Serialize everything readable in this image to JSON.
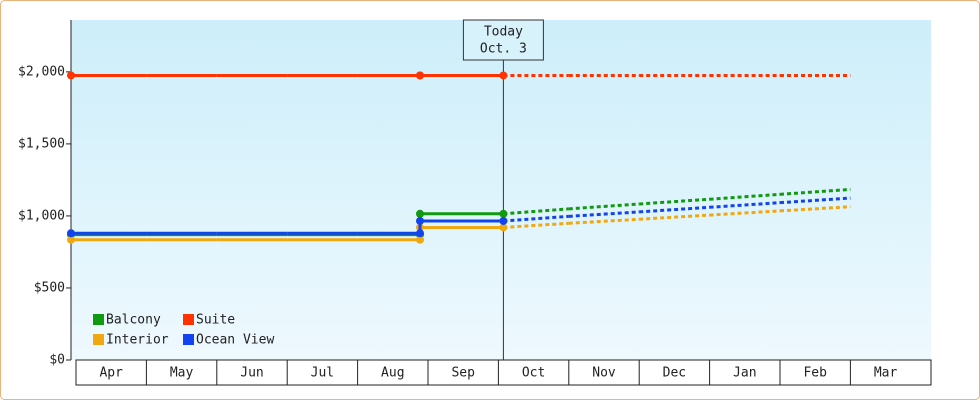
{
  "chart_data": {
    "type": "step-line",
    "categories": [
      "Apr",
      "May",
      "Jun",
      "Jul",
      "Aug",
      "Sep",
      "Oct",
      "Nov",
      "Dec",
      "Jan",
      "Feb",
      "Mar"
    ],
    "forecast_from": 6,
    "annotation": [
      "Today",
      "Oct. 3"
    ],
    "series": [
      {
        "name": "Balcony",
        "color": "#119911",
        "values": [
          870,
          870,
          870,
          870,
          870,
          1015,
          1015,
          1049,
          1083,
          1116,
          1150,
          1184
        ]
      },
      {
        "name": "Suite",
        "color": "#ff3300",
        "values": [
          1975,
          1975,
          1975,
          1975,
          1975,
          1975,
          1975,
          1975,
          1975,
          1975,
          1975,
          1975
        ]
      },
      {
        "name": "Interior",
        "color": "#f0a810",
        "values": [
          835,
          835,
          835,
          835,
          835,
          920,
          920,
          949,
          977,
          1006,
          1035,
          1064
        ]
      },
      {
        "name": "Ocean View",
        "color": "#1144ee",
        "values": [
          880,
          880,
          880,
          880,
          880,
          965,
          965,
          997,
          1028,
          1060,
          1092,
          1124
        ]
      }
    ],
    "ylim": [
      0,
      2360
    ],
    "yticks": [
      {
        "value": 0,
        "label": "$0"
      },
      {
        "value": 500,
        "label": "$500"
      },
      {
        "value": 1000,
        "label": "$1,000"
      },
      {
        "value": 1500,
        "label": "$1,500"
      },
      {
        "value": 2000,
        "label": "$2,000"
      }
    ],
    "grid": false
  }
}
